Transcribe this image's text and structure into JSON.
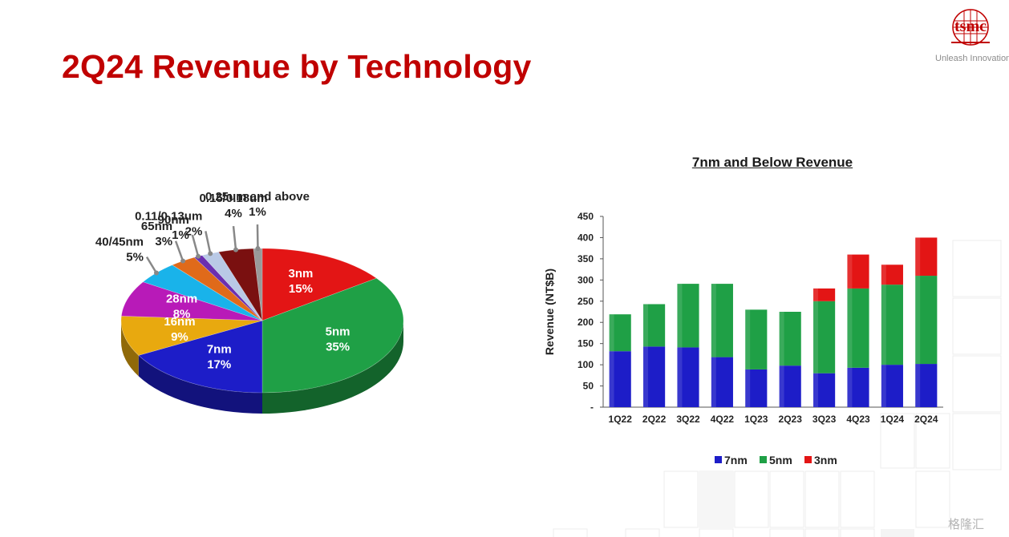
{
  "slide": {
    "title": "2Q24 Revenue by Technology",
    "logo_text": "tsmc",
    "logo_tagline": "Unleash Innovation",
    "watermark": "格隆汇"
  },
  "chart_data": [
    {
      "type": "pie",
      "title": "",
      "slices": [
        {
          "label": "3nm",
          "value": 15,
          "color": "#e31515"
        },
        {
          "label": "5nm",
          "value": 35,
          "color": "#1fa046"
        },
        {
          "label": "7nm",
          "value": 17,
          "color": "#1d1dc8"
        },
        {
          "label": "16nm",
          "value": 9,
          "color": "#e8a90f"
        },
        {
          "label": "28nm",
          "value": 8,
          "color": "#b81ab8"
        },
        {
          "label": "40/45nm",
          "value": 5,
          "color": "#19b3ea"
        },
        {
          "label": "65nm",
          "value": 3,
          "color": "#e06a1a"
        },
        {
          "label": "90nm",
          "value": 1,
          "color": "#6b2fb0"
        },
        {
          "label": "0.11/0.13um",
          "value": 2,
          "color": "#b9c9e6"
        },
        {
          "label": "0.15/0.18um",
          "value": 4,
          "color": "#7a1010"
        },
        {
          "label": "0.25um and above",
          "value": 1,
          "color": "#9a9a9a"
        }
      ],
      "value_suffix": "%"
    },
    {
      "type": "bar",
      "stacked": true,
      "title": "7nm and Below Revenue",
      "xlabel": "",
      "ylabel": "Revenue (NT$B)",
      "ylim": [
        0,
        450
      ],
      "yticks": [
        "-",
        "50",
        "100",
        "150",
        "200",
        "250",
        "300",
        "350",
        "400",
        "450"
      ],
      "categories": [
        "1Q22",
        "2Q22",
        "3Q22",
        "4Q22",
        "1Q23",
        "2Q23",
        "3Q23",
        "4Q23",
        "1Q24",
        "2Q24"
      ],
      "series": [
        {
          "name": "7nm",
          "color": "#1d1dc8",
          "values": [
            132,
            143,
            141,
            118,
            89,
            98,
            80,
            93,
            100,
            102
          ]
        },
        {
          "name": "5nm",
          "color": "#1fa046",
          "values": [
            87,
            100,
            150,
            173,
            141,
            127,
            170,
            187,
            189,
            208
          ]
        },
        {
          "name": "3nm",
          "color": "#e31515",
          "values": [
            0,
            0,
            0,
            0,
            0,
            0,
            30,
            80,
            47,
            90
          ]
        }
      ],
      "legend_position": "bottom",
      "grid": false
    }
  ]
}
